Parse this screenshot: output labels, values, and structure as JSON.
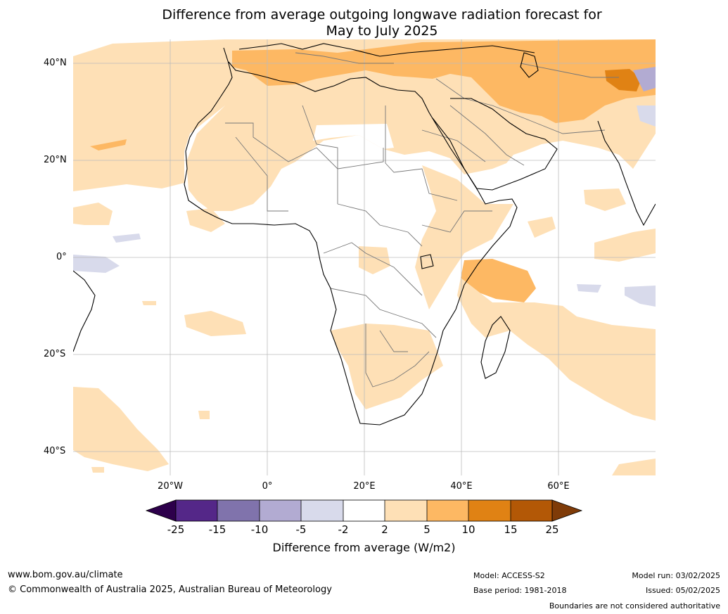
{
  "title": {
    "line1": "Difference from average outgoing longwave radiation forecast for",
    "line2": "May to July 2025"
  },
  "lat_labels": [
    "40°N",
    "20°N",
    "0°",
    "20°S",
    "40°S"
  ],
  "lon_labels": [
    "20°W",
    "0°",
    "20°E",
    "40°E",
    "60°E"
  ],
  "colorbar": {
    "title": "Difference from average (W/m2)",
    "ticks": [
      "-25",
      "-15",
      "-10",
      "-5",
      "-2",
      "2",
      "5",
      "10",
      "15",
      "25"
    ],
    "colors": {
      "below_min": "#2d004b",
      "-25_-15": "#542788",
      "-15_-10": "#8073ac",
      "-10_-5": "#b2abd2",
      "-5_-2": "#d8daeb",
      "-2_2": "#ffffff",
      "2_5": "#fee0b6",
      "5_10": "#fdb863",
      "10_15": "#e08214",
      "15_25": "#b35806",
      "above_max": "#7f3b08"
    }
  },
  "footer": {
    "website": "www.bom.gov.au/climate",
    "copyright": "© Commonwealth of Australia 2025, Australian Bureau of Meteorology",
    "model": "Model: ACCESS-S2",
    "base_period": "Base period: 1981-2018",
    "model_run": "Model run: 03/02/2025",
    "issued": "Issued: 05/02/2025",
    "disclaimer": "Boundaries are not considered authoritative"
  }
}
